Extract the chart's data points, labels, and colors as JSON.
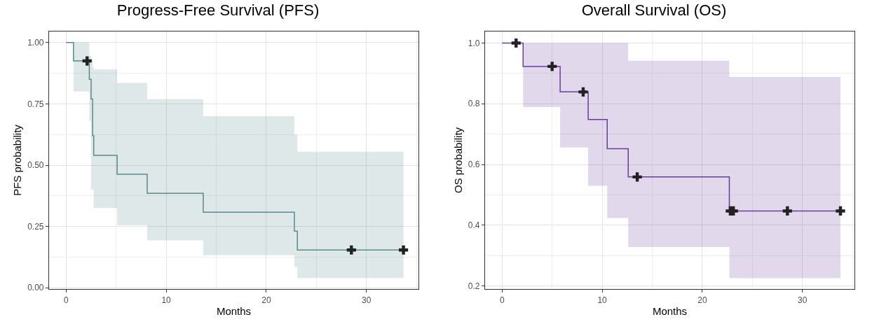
{
  "chart_data": [
    {
      "type": "step",
      "title": "Progress-Free Survival (PFS)",
      "xlabel": "Months",
      "ylabel": "PFS probability",
      "xlim": [
        -1.7,
        35.2
      ],
      "xticks": [
        0,
        10,
        20,
        30
      ],
      "ylim": [
        -0.005,
        1.045
      ],
      "yticks": [
        {
          "value": 0,
          "label": "0.00"
        },
        {
          "value": 0.25,
          "label": "0.25"
        },
        {
          "value": 0.5,
          "label": "0.50"
        },
        {
          "value": 0.75,
          "label": "0.75"
        },
        {
          "value": 1,
          "label": "1.00"
        }
      ],
      "grid": true,
      "series": [
        {
          "color": "#5b8a8a",
          "x": [
            0,
            0.74,
            2.32,
            2.5,
            2.65,
            2.76,
            5.1,
            8.1,
            13.7,
            22.8,
            23.1,
            33.7
          ],
          "values": [
            1,
            0.925,
            0.85,
            0.77,
            0.62,
            0.54,
            0.463,
            0.385,
            0.308,
            0.231,
            0.154,
            0.154
          ],
          "lower": [
            1,
            0.8,
            0.68,
            0.4,
            0.4,
            0.325,
            0.255,
            0.193,
            0.133,
            0.085,
            0.04,
            0.04
          ],
          "upper": [
            1,
            1,
            0.947,
            0.93,
            0.9,
            0.89,
            0.835,
            0.77,
            0.7,
            0.625,
            0.555,
            0.555
          ]
        },
        {
          "type": "scatter",
          "marker": "cross",
          "color": "#222222",
          "x": [
            2.1,
            28.5,
            33.7
          ],
          "values": [
            0.925,
            0.154,
            0.154
          ]
        }
      ]
    },
    {
      "type": "step",
      "title": "Overall Survival (OS)",
      "xlabel": "Months",
      "ylabel": "OS probability",
      "xlim": [
        -1.7,
        35.2
      ],
      "xticks": [
        0,
        10,
        20,
        30
      ],
      "ylim": [
        0.19,
        1.038
      ],
      "yticks": [
        {
          "value": 0.2,
          "label": "0.2"
        },
        {
          "value": 0.4,
          "label": "0.4"
        },
        {
          "value": 0.6,
          "label": "0.6"
        },
        {
          "value": 0.8,
          "label": "0.8"
        },
        {
          "value": 1,
          "label": "1.0"
        }
      ],
      "grid": true,
      "series": [
        {
          "color": "#6b3d99",
          "x": [
            0,
            2.1,
            5.8,
            8.6,
            10.5,
            12.6,
            22.7,
            33.8
          ],
          "values": [
            1,
            0.923,
            0.839,
            0.748,
            0.652,
            0.559,
            0.447,
            0.447
          ],
          "lower": [
            1,
            0.789,
            0.656,
            0.53,
            0.424,
            0.328,
            0.226,
            0.226
          ],
          "upper": [
            1,
            1,
            1,
            1,
            1,
            0.942,
            0.888,
            0.888
          ]
        },
        {
          "type": "scatter",
          "marker": "cross",
          "color": "#222222",
          "x": [
            1.4,
            5,
            8.1,
            13.5,
            22.8,
            23.1,
            28.5,
            33.8
          ],
          "values": [
            1,
            0.923,
            0.839,
            0.559,
            0.447,
            0.447,
            0.447,
            0.447
          ]
        }
      ]
    }
  ]
}
